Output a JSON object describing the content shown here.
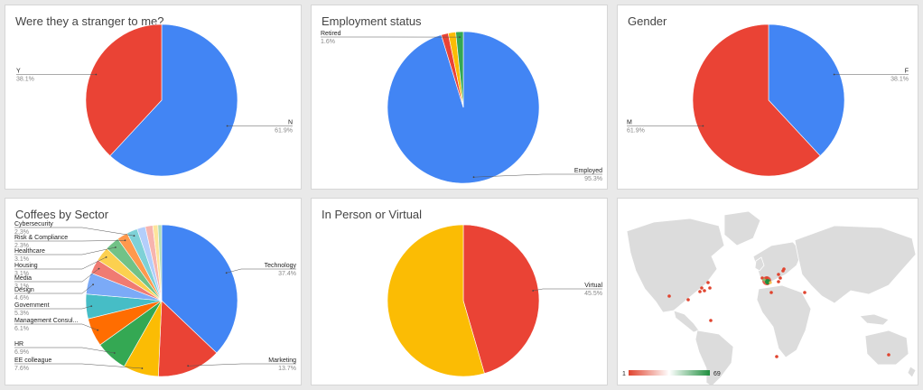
{
  "chart_data": [
    {
      "type": "pie",
      "title": "Were they a stranger to me?",
      "slices": [
        {
          "label": "N",
          "value": 61.9,
          "pct_label": "61.9%",
          "color": "#4285f4"
        },
        {
          "label": "Y",
          "value": 38.1,
          "pct_label": "38.1%",
          "color": "#ea4335"
        }
      ]
    },
    {
      "type": "pie",
      "title": "Employment status",
      "slices": [
        {
          "label": "Employed",
          "value": 95.3,
          "pct_label": "95.3%",
          "color": "#4285f4"
        },
        {
          "label": "",
          "value": 1.5,
          "pct_label": "",
          "color": "#ea4335"
        },
        {
          "label": "",
          "value": 1.6,
          "pct_label": "",
          "color": "#fbbc04"
        },
        {
          "label": "Retired",
          "value": 1.6,
          "pct_label": "1.6%",
          "color": "#34a853"
        }
      ]
    },
    {
      "type": "pie",
      "title": "Gender",
      "slices": [
        {
          "label": "F",
          "value": 38.1,
          "pct_label": "38.1%",
          "color": "#4285f4"
        },
        {
          "label": "M",
          "value": 61.9,
          "pct_label": "61.9%",
          "color": "#ea4335"
        }
      ]
    },
    {
      "type": "pie",
      "title": "Coffees by Sector",
      "slices": [
        {
          "label": "Technology",
          "value": 37.4,
          "pct_label": "37.4%",
          "color": "#4285f4"
        },
        {
          "label": "Marketing",
          "value": 13.7,
          "pct_label": "13.7%",
          "color": "#ea4335"
        },
        {
          "label": "EE colleague",
          "value": 7.6,
          "pct_label": "7.6%",
          "color": "#fbbc04"
        },
        {
          "label": "HR",
          "value": 6.9,
          "pct_label": "6.9%",
          "color": "#34a853"
        },
        {
          "label": "Management Consul...",
          "value": 6.1,
          "pct_label": "6.1%",
          "color": "#ff6d01"
        },
        {
          "label": "Government",
          "value": 5.3,
          "pct_label": "5.3%",
          "color": "#46bdc6"
        },
        {
          "label": "Design",
          "value": 4.6,
          "pct_label": "4.6%",
          "color": "#7baaf7"
        },
        {
          "label": "Media",
          "value": 3.1,
          "pct_label": "3.1%",
          "color": "#f07b72"
        },
        {
          "label": "Housing",
          "value": 3.1,
          "pct_label": "3.1%",
          "color": "#fcd04f"
        },
        {
          "label": "Healthcare",
          "value": 3.1,
          "pct_label": "3.1%",
          "color": "#71c287"
        },
        {
          "label": "Risk & Compliance",
          "value": 2.3,
          "pct_label": "2.3%",
          "color": "#ff994d"
        },
        {
          "label": "Cybersecurity",
          "value": 2.3,
          "pct_label": "2.3%",
          "color": "#7ed1d7"
        },
        {
          "label": "",
          "value": 1.8,
          "pct_label": "",
          "color": "#b3cefb"
        },
        {
          "label": "",
          "value": 1.6,
          "pct_label": "",
          "color": "#f7b4ae"
        },
        {
          "label": "",
          "value": 1.1,
          "pct_label": "",
          "color": "#fde49b"
        },
        {
          "label": "",
          "value": 0.8,
          "pct_label": "",
          "color": "#aedcba"
        }
      ]
    },
    {
      "type": "pie",
      "title": "In Person or Virtual",
      "slices": [
        {
          "label": "Virtual",
          "value": 45.5,
          "pct_label": "45.5%",
          "color": "#ea4335"
        },
        {
          "label": "",
          "value": 54.5,
          "pct_label": "",
          "color": "#fbbc04"
        }
      ]
    }
  ],
  "map": {
    "legend_min": "1",
    "legend_max": "69",
    "low_color": "#e0442f",
    "high_color": "#1e8e3e"
  }
}
